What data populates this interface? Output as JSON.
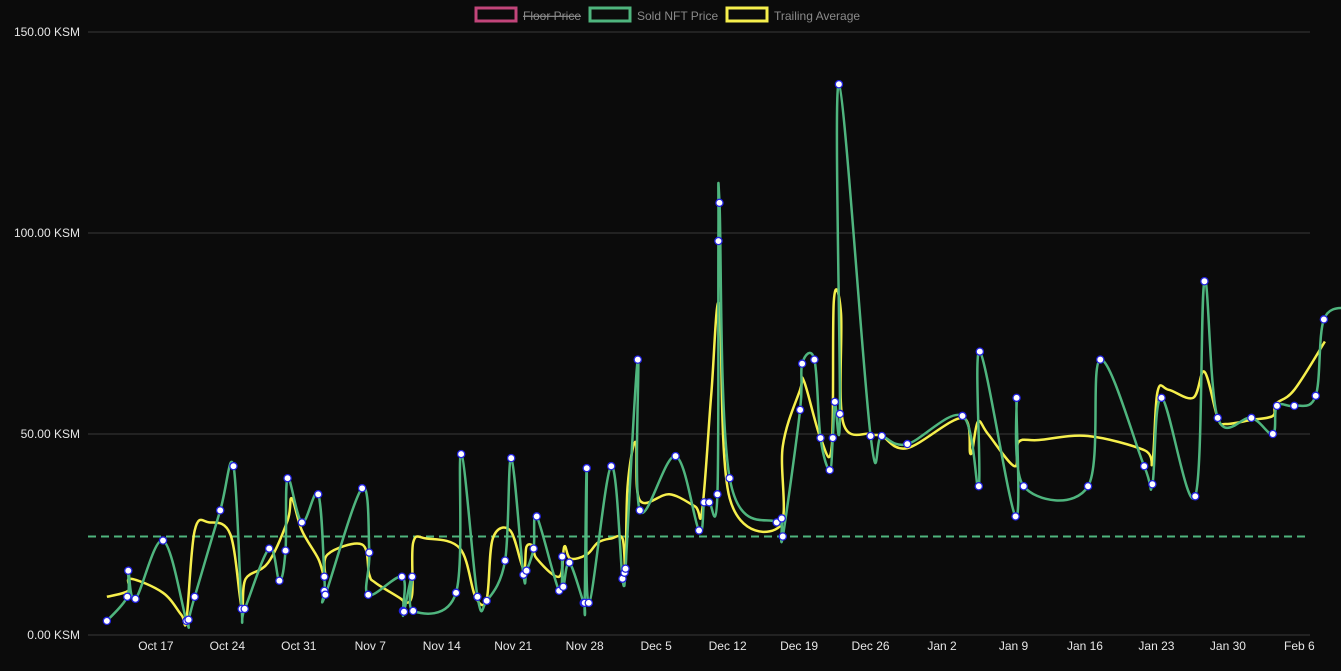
{
  "legend": [
    {
      "label": "Floor Price",
      "color": "#c2457a",
      "hidden": true
    },
    {
      "label": "Sold NFT Price",
      "color": "#4fb57e",
      "hidden": false
    },
    {
      "label": "Trailing Average",
      "color": "#f6ef4c",
      "hidden": false
    }
  ],
  "colors": {
    "background": "#0b0b0b",
    "grid": "#3a3a3a",
    "sold_line": "#4fb57e",
    "trailing_line": "#f6ef4c",
    "reference_line": "#4fb57e",
    "point_fill": "#ffffff",
    "point_stroke": "#2323e0",
    "tick_text": "#e6e6e6",
    "legend_text": "#8a8a8a"
  },
  "chart_data": {
    "type": "line",
    "x_unit": "days from Oct 10",
    "x_ticks": [
      {
        "x": 7,
        "label": "Oct 17"
      },
      {
        "x": 14,
        "label": "Oct 24"
      },
      {
        "x": 21,
        "label": "Oct 31"
      },
      {
        "x": 28,
        "label": "Nov 7"
      },
      {
        "x": 35,
        "label": "Nov 14"
      },
      {
        "x": 42,
        "label": "Nov 21"
      },
      {
        "x": 49,
        "label": "Nov 28"
      },
      {
        "x": 56,
        "label": "Dec 5"
      },
      {
        "x": 63,
        "label": "Dec 12"
      },
      {
        "x": 70,
        "label": "Dec 19"
      },
      {
        "x": 77,
        "label": "Dec 26"
      },
      {
        "x": 84,
        "label": "Jan 2"
      },
      {
        "x": 91,
        "label": "Jan 9"
      },
      {
        "x": 98,
        "label": "Jan 16"
      },
      {
        "x": 105,
        "label": "Jan 23"
      },
      {
        "x": 112,
        "label": "Jan 30"
      },
      {
        "x": 119,
        "label": "Feb 6"
      }
    ],
    "y_ticks": [
      {
        "y": 0,
        "label": "0.00 KSM"
      },
      {
        "y": 50,
        "label": "50.00 KSM"
      },
      {
        "y": 100,
        "label": "100.00 KSM"
      },
      {
        "y": 150,
        "label": "150.00 KSM"
      }
    ],
    "xlim": [
      2.1,
      120.2
    ],
    "ylim": [
      0,
      150
    ],
    "reference_line_y": 24.5,
    "series": [
      {
        "name": "Sold NFT Price",
        "points": [
          [
            2.2,
            3.5
          ],
          [
            4.2,
            9.5
          ],
          [
            4.3,
            16
          ],
          [
            5.0,
            9
          ],
          [
            7.7,
            23.5
          ],
          [
            10.0,
            3.5
          ],
          [
            10.2,
            3.8
          ],
          [
            10.8,
            9.5
          ],
          [
            13.3,
            31
          ],
          [
            14.6,
            42
          ],
          [
            15.4,
            6.5
          ],
          [
            15.7,
            6.5
          ],
          [
            18.1,
            21.5
          ],
          [
            19.1,
            13.5
          ],
          [
            19.7,
            21
          ],
          [
            19.9,
            39
          ],
          [
            21.3,
            28
          ],
          [
            22.9,
            35
          ],
          [
            23.5,
            14.5
          ],
          [
            23.5,
            11
          ],
          [
            23.6,
            10
          ],
          [
            27.2,
            36.5
          ],
          [
            27.9,
            20.5
          ],
          [
            27.8,
            10
          ],
          [
            31.1,
            14.5
          ],
          [
            31.2,
            6
          ],
          [
            31.3,
            5.8
          ],
          [
            32.1,
            14.5
          ],
          [
            32.2,
            6
          ],
          [
            36.4,
            10.5
          ],
          [
            36.9,
            45
          ],
          [
            38.5,
            9.5
          ],
          [
            39.4,
            8.5
          ],
          [
            41.2,
            18.5
          ],
          [
            41.8,
            44
          ],
          [
            43.0,
            15
          ],
          [
            43.3,
            16
          ],
          [
            44.0,
            21.5
          ],
          [
            44.3,
            29.5
          ],
          [
            46.5,
            11
          ],
          [
            46.8,
            19.5
          ],
          [
            46.9,
            12
          ],
          [
            47.5,
            18
          ],
          [
            48.9,
            8
          ],
          [
            49.0,
            8
          ],
          [
            49.2,
            41.5
          ],
          [
            49.4,
            8
          ],
          [
            51.6,
            42
          ],
          [
            52.7,
            14
          ],
          [
            52.9,
            15.5
          ],
          [
            53.0,
            16.5
          ],
          [
            54.2,
            68.5
          ],
          [
            54.4,
            31
          ],
          [
            57.9,
            44.5
          ],
          [
            60.2,
            26
          ],
          [
            60.7,
            33
          ],
          [
            61.2,
            33
          ],
          [
            62.0,
            35
          ],
          [
            62.1,
            98
          ],
          [
            62.2,
            107.5
          ],
          [
            63.2,
            39
          ],
          [
            67.8,
            28
          ],
          [
            68.3,
            29
          ],
          [
            68.4,
            24.5
          ],
          [
            70.1,
            56
          ],
          [
            70.3,
            67.5
          ],
          [
            71.5,
            68.5
          ],
          [
            72.1,
            49
          ],
          [
            73.0,
            41
          ],
          [
            73.3,
            49
          ],
          [
            73.5,
            58
          ],
          [
            74.0,
            55
          ],
          [
            73.9,
            137
          ],
          [
            77.0,
            49.5
          ],
          [
            78.1,
            49.5
          ],
          [
            80.6,
            47.5
          ],
          [
            86.0,
            54.5
          ],
          [
            87.6,
            37
          ],
          [
            87.7,
            70.5
          ],
          [
            91.2,
            29.5
          ],
          [
            91.3,
            59
          ],
          [
            92.0,
            37
          ],
          [
            98.3,
            37
          ],
          [
            99.5,
            68.5
          ],
          [
            103.8,
            42
          ],
          [
            104.6,
            37.5
          ],
          [
            105.5,
            59
          ],
          [
            108.8,
            34.5
          ],
          [
            109.7,
            88
          ],
          [
            111.0,
            54
          ],
          [
            114.3,
            54
          ],
          [
            116.4,
            50
          ],
          [
            116.8,
            57
          ],
          [
            118.5,
            57
          ],
          [
            120.6,
            59.5
          ],
          [
            121.4,
            78.5
          ],
          [
            123.8,
            81.5
          ]
        ]
      },
      {
        "name": "Trailing Average",
        "points": [
          [
            2.2,
            9.5
          ],
          [
            4.3,
            11
          ],
          [
            4.5,
            14
          ],
          [
            7.7,
            10.5
          ],
          [
            9.5,
            5
          ],
          [
            10.0,
            4
          ],
          [
            10.8,
            26
          ],
          [
            12.2,
            28
          ],
          [
            14.3,
            25
          ],
          [
            15.4,
            7
          ],
          [
            15.8,
            14
          ],
          [
            18.0,
            18
          ],
          [
            19.9,
            28.5
          ],
          [
            20.3,
            34
          ],
          [
            21.3,
            26
          ],
          [
            22.9,
            19
          ],
          [
            23.6,
            14
          ],
          [
            23.8,
            20
          ],
          [
            27.2,
            22.5
          ],
          [
            27.9,
            15
          ],
          [
            28.5,
            13
          ],
          [
            31.0,
            9
          ],
          [
            31.3,
            8
          ],
          [
            32.1,
            10
          ],
          [
            32.2,
            23
          ],
          [
            33.5,
            24
          ],
          [
            36.8,
            21.5
          ],
          [
            38.3,
            9.5
          ],
          [
            39.4,
            9
          ],
          [
            40.0,
            24
          ],
          [
            41.7,
            26
          ],
          [
            43.0,
            16.5
          ],
          [
            43.3,
            22
          ],
          [
            44.0,
            22
          ],
          [
            44.3,
            19
          ],
          [
            46.5,
            14.5
          ],
          [
            47.0,
            22
          ],
          [
            47.6,
            19
          ],
          [
            49.2,
            20
          ],
          [
            50.3,
            23
          ],
          [
            51.6,
            24
          ],
          [
            52.7,
            24
          ],
          [
            53.0,
            16
          ],
          [
            53.2,
            37
          ],
          [
            54.0,
            48
          ],
          [
            54.4,
            33.5
          ],
          [
            57.3,
            35
          ],
          [
            59.8,
            32
          ],
          [
            60.5,
            31
          ],
          [
            61.4,
            60
          ],
          [
            62.2,
            82
          ],
          [
            63.2,
            34
          ],
          [
            68.1,
            27
          ],
          [
            68.4,
            47
          ],
          [
            70.1,
            61
          ],
          [
            70.5,
            63
          ],
          [
            72.1,
            49
          ],
          [
            73.2,
            47
          ],
          [
            73.4,
            83
          ],
          [
            74.1,
            80
          ],
          [
            74.3,
            53
          ],
          [
            77.0,
            50
          ],
          [
            78.1,
            49.5
          ],
          [
            80.6,
            46.5
          ],
          [
            86.0,
            54
          ],
          [
            86.8,
            45
          ],
          [
            87.5,
            53
          ],
          [
            88.5,
            50
          ],
          [
            91.1,
            42
          ],
          [
            91.5,
            48
          ],
          [
            93.5,
            48.5
          ],
          [
            98.3,
            49.5
          ],
          [
            103.8,
            46
          ],
          [
            104.6,
            43
          ],
          [
            105.1,
            60.5
          ],
          [
            106.2,
            61
          ],
          [
            108.6,
            59
          ],
          [
            109.7,
            65.5
          ],
          [
            111.0,
            54
          ],
          [
            111.8,
            52.5
          ],
          [
            114.3,
            53.5
          ],
          [
            116.4,
            54.5
          ],
          [
            116.7,
            57.5
          ],
          [
            118.5,
            61
          ],
          [
            121.5,
            73
          ]
        ]
      }
    ]
  }
}
